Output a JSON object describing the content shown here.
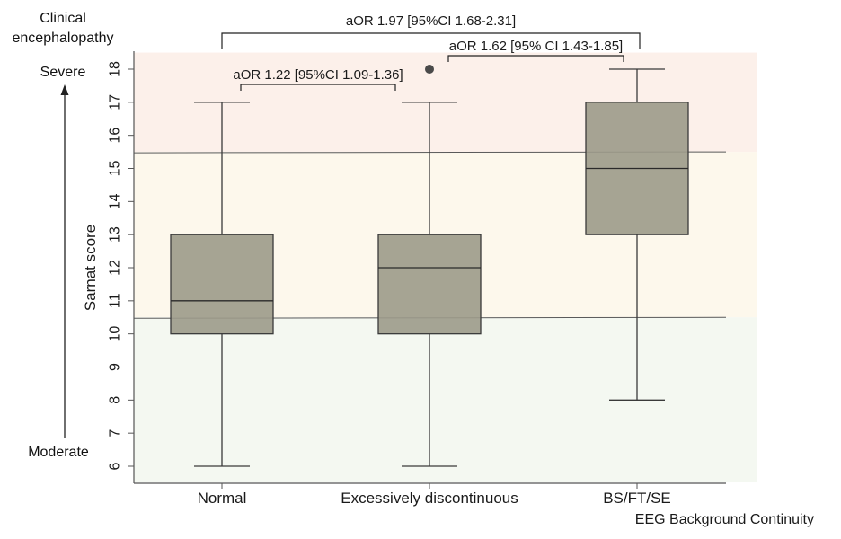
{
  "side_annotation": {
    "title_line1": "Clinical",
    "title_line2": "encephalopathy",
    "top_label": "Severe",
    "bottom_label": "Moderate"
  },
  "footer_label": "EEG Background Continuity",
  "colors": {
    "band_severe": "#fcf0ea",
    "band_moderate": "#fdf8ec",
    "band_mild": "#f4f8f1",
    "box_fill": "#9c9a8a",
    "box_stroke": "#3a3a3a",
    "line": "#3a3a3a"
  },
  "chart_data": {
    "type": "box",
    "title": "",
    "xlabel": "EEG Background Continuity",
    "ylabel": "Sarnat score",
    "ylim": [
      6,
      18
    ],
    "yticks": [
      6,
      7,
      8,
      9,
      10,
      11,
      12,
      13,
      14,
      15,
      16,
      17,
      18
    ],
    "categories": [
      "Normal",
      "Excessively discontinuous",
      "BS/FT/SE"
    ],
    "boxes": [
      {
        "category": "Normal",
        "whisker_low": 6,
        "q1": 10,
        "median": 11,
        "q3": 13,
        "whisker_high": 17,
        "outliers": []
      },
      {
        "category": "Excessively discontinuous",
        "whisker_low": 6,
        "q1": 10,
        "median": 12,
        "q3": 13,
        "whisker_high": 17,
        "outliers": [
          18
        ]
      },
      {
        "category": "BS/FT/SE",
        "whisker_low": 8,
        "q1": 13,
        "median": 15,
        "q3": 17,
        "whisker_high": 18,
        "outliers": []
      }
    ],
    "reference_lines": [
      15.5,
      10.5
    ],
    "bands": [
      {
        "from": 15.5,
        "to": 18.5,
        "level": "severe"
      },
      {
        "from": 10.5,
        "to": 15.5,
        "level": "moderate"
      },
      {
        "from": 5.5,
        "to": 10.5,
        "level": "mild"
      }
    ],
    "comparisons": [
      {
        "from": "Normal",
        "to": "BS/FT/SE",
        "label": "aOR 1.97 [95%CI 1.68-2.31]"
      },
      {
        "from": "Excessively discontinuous",
        "to": "BS/FT/SE",
        "label": "aOR 1.62 [95% CI 1.43-1.85]"
      },
      {
        "from": "Normal",
        "to": "Excessively discontinuous",
        "label": "aOR 1.22 [95%CI 1.09-1.36]"
      }
    ],
    "grid": false,
    "legend": "none"
  }
}
